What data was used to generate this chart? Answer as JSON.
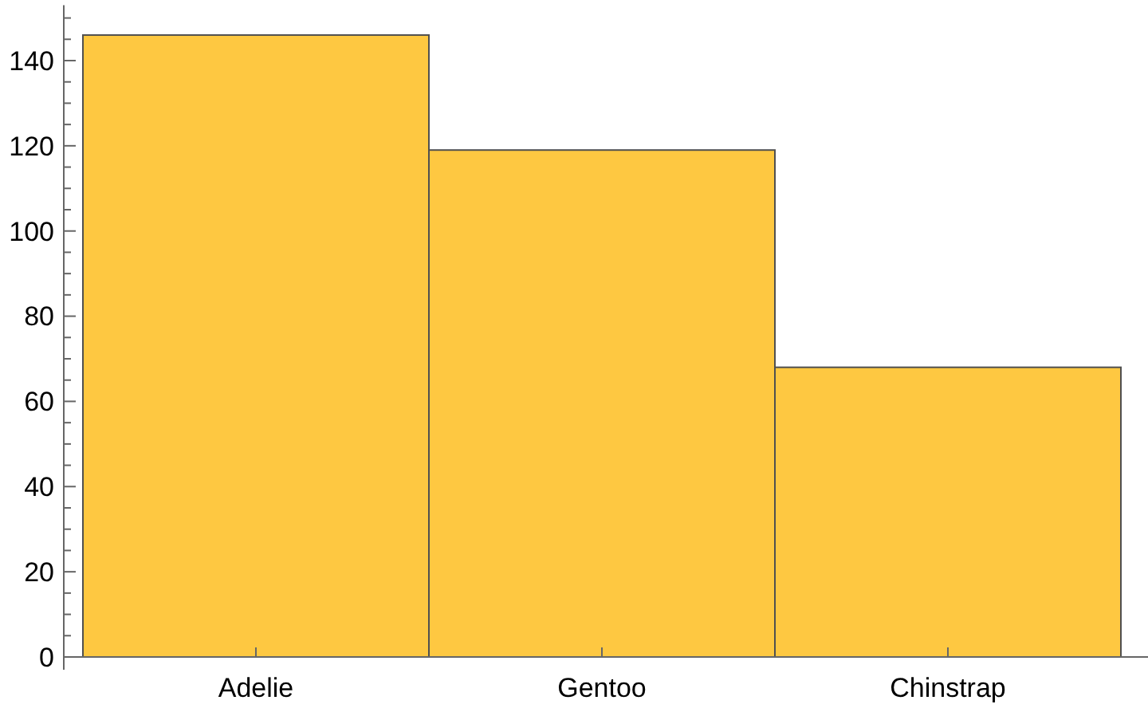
{
  "chart_data": {
    "type": "bar",
    "categories": [
      "Adelie",
      "Gentoo",
      "Chinstrap"
    ],
    "values": [
      146,
      119,
      68
    ],
    "color": "#fec841",
    "ylim": [
      0,
      153
    ],
    "yticks": [
      0,
      {
        "value": 5,
        "label": null
      },
      {
        "value": 10,
        "label": null
      },
      {
        "value": 15,
        "label": null
      },
      20,
      {
        "value": 25,
        "label": null
      },
      {
        "value": 30,
        "label": null
      },
      {
        "value": 35,
        "label": null
      },
      40,
      {
        "value": 45,
        "label": null
      },
      {
        "value": 50,
        "label": null
      },
      {
        "value": 55,
        "label": null
      },
      60,
      {
        "value": 65,
        "label": null
      },
      {
        "value": 70,
        "label": null
      },
      {
        "value": 75,
        "label": null
      },
      80,
      {
        "value": 85,
        "label": null
      },
      {
        "value": 90,
        "label": null
      },
      {
        "value": 95,
        "label": null
      },
      100,
      {
        "value": 105,
        "label": null
      },
      {
        "value": 110,
        "label": null
      },
      {
        "value": 115,
        "label": null
      },
      120,
      {
        "value": 125,
        "label": null
      },
      {
        "value": 130,
        "label": null
      },
      {
        "value": 135,
        "label": null
      },
      140,
      {
        "value": 145,
        "label": null
      },
      {
        "value": 150,
        "label": null
      }
    ],
    "grid": false
  }
}
